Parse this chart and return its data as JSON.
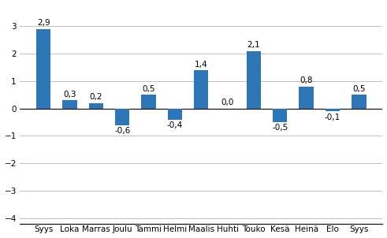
{
  "categories": [
    "Syys",
    "Loka",
    "Marras",
    "Joulu",
    "Tammi",
    "Helmi",
    "Maalis",
    "Huhti",
    "Touko",
    "Kesä",
    "Heinä",
    "Elo",
    "Syys"
  ],
  "values": [
    2.9,
    0.3,
    0.2,
    -0.6,
    0.5,
    -0.4,
    1.4,
    0.0,
    2.1,
    -0.5,
    0.8,
    -0.1,
    0.5
  ],
  "bar_color": "#2E75B6",
  "ylim": [
    -4.2,
    3.8
  ],
  "yticks": [
    -4,
    -3,
    -2,
    -1,
    0,
    1,
    2,
    3
  ],
  "grid_color": "#BEBEBE",
  "background_color": "#FFFFFF",
  "label_fontsize": 7.5,
  "tick_fontsize": 7.5,
  "year_fontsize": 8.0,
  "bar_width": 0.55
}
